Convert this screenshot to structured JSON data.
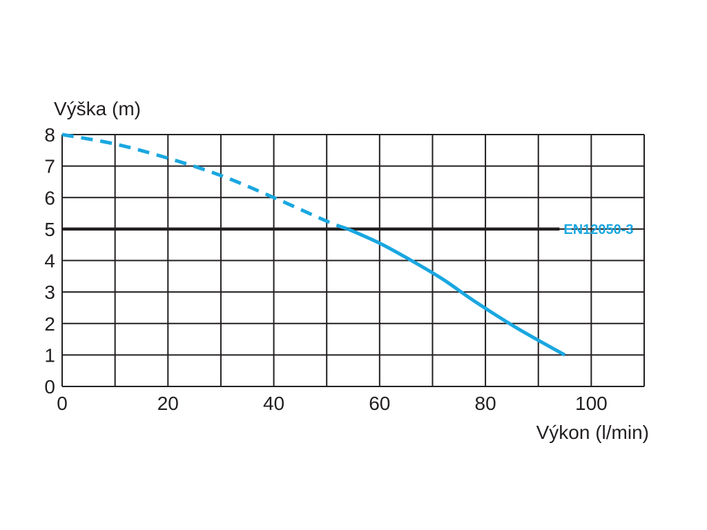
{
  "chart_data": {
    "type": "line",
    "ylabel": "Výška (m)",
    "xlabel": "Výkon (l/min)",
    "xlim": [
      0,
      110
    ],
    "ylim": [
      0,
      8
    ],
    "x_ticks": [
      "0",
      "20",
      "40",
      "60",
      "80",
      "100"
    ],
    "x_tick_values": [
      0,
      20,
      40,
      60,
      80,
      100
    ],
    "y_ticks": [
      "0",
      "1",
      "2",
      "3",
      "4",
      "5",
      "6",
      "7",
      "8"
    ],
    "y_tick_values": [
      0,
      1,
      2,
      3,
      4,
      5,
      6,
      7,
      8
    ],
    "grid": true,
    "x_grid_step": 10,
    "y_grid_step": 1,
    "series": [
      {
        "style": "dashed",
        "color": "#1aa7e0",
        "x": [
          0,
          10,
          20,
          30,
          40,
          50,
          54
        ],
        "y": [
          8.0,
          7.7,
          7.25,
          6.7,
          6.0,
          5.25,
          5.0
        ]
      },
      {
        "style": "solid",
        "color": "#1aa7e0",
        "x": [
          54,
          60,
          66,
          72,
          78,
          86,
          95
        ],
        "y": [
          5.0,
          4.55,
          4.0,
          3.4,
          2.7,
          1.85,
          1.0
        ]
      }
    ],
    "reference_line": {
      "y": 5,
      "x_range": [
        0,
        94
      ],
      "color": "#231f20",
      "label": "EN12050-3",
      "label_color": "#1aa7e0"
    }
  }
}
